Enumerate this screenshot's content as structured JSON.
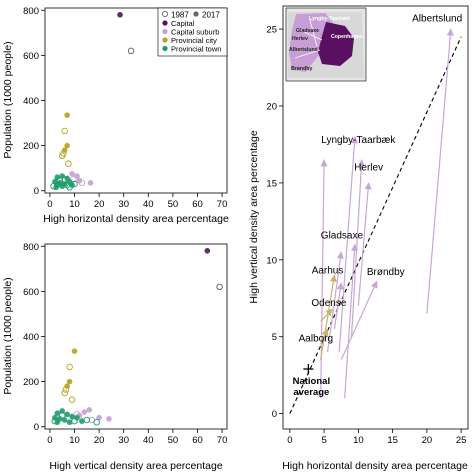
{
  "colors": {
    "capital": "#5a1060",
    "capital_suburb": "#c79ed6",
    "provincial_city": "#b7a21e",
    "provincial_town": "#1f9a6a",
    "year1987": "#666666",
    "year2017": "#666666",
    "arrow_suburb": "#c9a6d6",
    "arrow_city": "#c8b46a",
    "trend": "#000000"
  },
  "chart_data": [
    {
      "type": "scatter",
      "id": "top-left",
      "title": "",
      "xlabel": "High horizontal density area percentage",
      "ylabel": "Population (1000 people)",
      "xlim": [
        -2,
        72
      ],
      "ylim": [
        -10,
        810
      ],
      "xticks": [
        "0",
        "10",
        "20",
        "30",
        "40",
        "50",
        "60",
        "70"
      ],
      "yticks": [
        "0",
        "200",
        "400",
        "600",
        "800"
      ],
      "legend": {
        "placement": "top-right",
        "year_entries": [
          "1987",
          "2017"
        ],
        "category_entries": [
          "Capital",
          "Capital suburb",
          "Provincial city",
          "Provincial town"
        ]
      },
      "points": [
        {
          "x": 28.5,
          "y": 780,
          "cat": "capital",
          "year": "2017"
        },
        {
          "x": 33,
          "y": 620,
          "cat": "capital",
          "year": "1987"
        },
        {
          "x": 7,
          "y": 335,
          "cat": "provincial_city",
          "year": "2017"
        },
        {
          "x": 6,
          "y": 265,
          "cat": "provincial_city",
          "year": "1987"
        },
        {
          "x": 7,
          "y": 200,
          "cat": "provincial_city",
          "year": "2017"
        },
        {
          "x": 6,
          "y": 180,
          "cat": "provincial_city",
          "year": "2017"
        },
        {
          "x": 5.5,
          "y": 165,
          "cat": "provincial_city",
          "year": "1987"
        },
        {
          "x": 5,
          "y": 155,
          "cat": "provincial_city",
          "year": "1987"
        },
        {
          "x": 7.5,
          "y": 120,
          "cat": "provincial_city",
          "year": "1987"
        },
        {
          "x": 9,
          "y": 75,
          "cat": "capital_suburb",
          "year": "2017"
        },
        {
          "x": 11,
          "y": 65,
          "cat": "capital_suburb",
          "year": "2017"
        },
        {
          "x": 12,
          "y": 45,
          "cat": "capital_suburb",
          "year": "2017"
        },
        {
          "x": 16.5,
          "y": 35,
          "cat": "capital_suburb",
          "year": "2017"
        },
        {
          "x": 13,
          "y": 35,
          "cat": "capital_suburb",
          "year": "1987"
        },
        {
          "x": 9.5,
          "y": 50,
          "cat": "capital_suburb",
          "year": "1987"
        },
        {
          "x": 3,
          "y": 60,
          "cat": "provincial_town",
          "year": "2017"
        },
        {
          "x": 5,
          "y": 65,
          "cat": "provincial_town",
          "year": "2017"
        },
        {
          "x": 7,
          "y": 55,
          "cat": "provincial_town",
          "year": "2017"
        },
        {
          "x": 2,
          "y": 40,
          "cat": "provincial_town",
          "year": "2017"
        },
        {
          "x": 4,
          "y": 35,
          "cat": "provincial_town",
          "year": "2017"
        },
        {
          "x": 6,
          "y": 30,
          "cat": "provincial_town",
          "year": "2017"
        },
        {
          "x": 8,
          "y": 40,
          "cat": "provincial_town",
          "year": "2017"
        },
        {
          "x": 3,
          "y": 25,
          "cat": "provincial_town",
          "year": "2017"
        },
        {
          "x": 5,
          "y": 20,
          "cat": "provincial_town",
          "year": "2017"
        },
        {
          "x": 9,
          "y": 25,
          "cat": "provincial_town",
          "year": "2017"
        },
        {
          "x": 2.5,
          "y": 15,
          "cat": "provincial_town",
          "year": "2017"
        },
        {
          "x": 4,
          "y": 45,
          "cat": "provincial_town",
          "year": "1987"
        },
        {
          "x": 6,
          "y": 50,
          "cat": "provincial_town",
          "year": "1987"
        },
        {
          "x": 3,
          "y": 30,
          "cat": "provincial_town",
          "year": "1987"
        },
        {
          "x": 7,
          "y": 25,
          "cat": "provincial_town",
          "year": "1987"
        },
        {
          "x": 10,
          "y": 30,
          "cat": "provincial_town",
          "year": "1987"
        },
        {
          "x": 1.5,
          "y": 20,
          "cat": "provincial_town",
          "year": "1987"
        },
        {
          "x": 8,
          "y": 15,
          "cat": "provincial_town",
          "year": "1987"
        }
      ]
    },
    {
      "type": "scatter",
      "id": "bottom-left",
      "title": "",
      "xlabel": "High vertical density area percentage",
      "ylabel": "Population (1000 people)",
      "xlim": [
        -2,
        72
      ],
      "ylim": [
        -10,
        810
      ],
      "xticks": [
        "0",
        "10",
        "20",
        "30",
        "40",
        "50",
        "60",
        "70"
      ],
      "yticks": [
        "0",
        "200",
        "400",
        "600",
        "800"
      ],
      "points": [
        {
          "x": 64,
          "y": 780,
          "cat": "capital",
          "year": "2017"
        },
        {
          "x": 69,
          "y": 620,
          "cat": "capital",
          "year": "1987"
        },
        {
          "x": 10,
          "y": 335,
          "cat": "provincial_city",
          "year": "2017"
        },
        {
          "x": 8,
          "y": 265,
          "cat": "provincial_city",
          "year": "1987"
        },
        {
          "x": 8,
          "y": 200,
          "cat": "provincial_city",
          "year": "2017"
        },
        {
          "x": 7,
          "y": 180,
          "cat": "provincial_city",
          "year": "2017"
        },
        {
          "x": 6.5,
          "y": 165,
          "cat": "provincial_city",
          "year": "1987"
        },
        {
          "x": 6,
          "y": 150,
          "cat": "provincial_city",
          "year": "1987"
        },
        {
          "x": 9,
          "y": 120,
          "cat": "provincial_city",
          "year": "1987"
        },
        {
          "x": 16,
          "y": 75,
          "cat": "capital_suburb",
          "year": "2017"
        },
        {
          "x": 14,
          "y": 65,
          "cat": "capital_suburb",
          "year": "2017"
        },
        {
          "x": 20,
          "y": 40,
          "cat": "capital_suburb",
          "year": "2017"
        },
        {
          "x": 24,
          "y": 35,
          "cat": "capital_suburb",
          "year": "2017"
        },
        {
          "x": 12,
          "y": 50,
          "cat": "capital_suburb",
          "year": "2017"
        },
        {
          "x": 17,
          "y": 30,
          "cat": "capital_suburb",
          "year": "1987"
        },
        {
          "x": 11,
          "y": 55,
          "cat": "capital_suburb",
          "year": "1987"
        },
        {
          "x": 3,
          "y": 60,
          "cat": "provincial_town",
          "year": "2017"
        },
        {
          "x": 5,
          "y": 70,
          "cat": "provincial_town",
          "year": "2017"
        },
        {
          "x": 7,
          "y": 55,
          "cat": "provincial_town",
          "year": "2017"
        },
        {
          "x": 9,
          "y": 45,
          "cat": "provincial_town",
          "year": "2017"
        },
        {
          "x": 2,
          "y": 40,
          "cat": "provincial_town",
          "year": "2017"
        },
        {
          "x": 4,
          "y": 35,
          "cat": "provincial_town",
          "year": "2017"
        },
        {
          "x": 6,
          "y": 30,
          "cat": "provincial_town",
          "year": "2017"
        },
        {
          "x": 11,
          "y": 40,
          "cat": "provincial_town",
          "year": "2017"
        },
        {
          "x": 13,
          "y": 25,
          "cat": "provincial_town",
          "year": "2017"
        },
        {
          "x": 3,
          "y": 20,
          "cat": "provincial_town",
          "year": "2017"
        },
        {
          "x": 8,
          "y": 20,
          "cat": "provincial_town",
          "year": "2017"
        },
        {
          "x": 5,
          "y": 50,
          "cat": "provincial_town",
          "year": "1987"
        },
        {
          "x": 10,
          "y": 25,
          "cat": "provincial_town",
          "year": "1987"
        },
        {
          "x": 15,
          "y": 30,
          "cat": "provincial_town",
          "year": "1987"
        },
        {
          "x": 19,
          "y": 20,
          "cat": "provincial_town",
          "year": "1987"
        },
        {
          "x": 2,
          "y": 25,
          "cat": "provincial_town",
          "year": "1987"
        }
      ]
    },
    {
      "type": "scatter",
      "id": "right",
      "title": "",
      "xlabel": "High horizontal density area percentage",
      "ylabel": "High vertical density area percentage",
      "xlim": [
        -1,
        26
      ],
      "ylim": [
        -1,
        26.5
      ],
      "xticks": [
        "0",
        "5",
        "10",
        "15",
        "20",
        "25"
      ],
      "yticks": [
        "0",
        "5",
        "10",
        "15",
        "20",
        "25"
      ],
      "trend_line": {
        "x": [
          0,
          25
        ],
        "y": [
          0,
          24.5
        ]
      },
      "arrows": [
        {
          "from": [
            20,
            6.5
          ],
          "to": [
            23.5,
            25
          ],
          "cat": "capital_suburb"
        },
        {
          "from": [
            7.2,
            4
          ],
          "to": [
            9.5,
            18
          ],
          "cat": "capital_suburb"
        },
        {
          "from": [
            4.5,
            1
          ],
          "to": [
            5,
            16.5
          ],
          "cat": "capital_suburb"
        },
        {
          "from": [
            10,
            7
          ],
          "to": [
            11.5,
            15
          ],
          "cat": "capital_suburb"
        },
        {
          "from": [
            9,
            5
          ],
          "to": [
            10.5,
            16.5
          ],
          "cat": "capital_suburb"
        },
        {
          "from": [
            5.5,
            4
          ],
          "to": [
            7.5,
            10.5
          ],
          "cat": "capital_suburb"
        },
        {
          "from": [
            8,
            1
          ],
          "to": [
            9.5,
            11
          ],
          "cat": "capital_suburb"
        },
        {
          "from": [
            7.5,
            3.5
          ],
          "to": [
            12.7,
            8.6
          ],
          "cat": "capital_suburb"
        },
        {
          "from": [
            6.5,
            5.5
          ],
          "to": [
            7.5,
            8.5
          ],
          "cat": "capital_suburb"
        },
        {
          "from": [
            4.5,
            3.5
          ],
          "to": [
            6.5,
            9
          ],
          "cat": "provincial_city"
        },
        {
          "from": [
            4.5,
            6
          ],
          "to": [
            6.2,
            6.8
          ],
          "cat": "provincial_city"
        },
        {
          "from": [
            4.5,
            4.5
          ],
          "to": [
            5.5,
            5.5
          ],
          "cat": "provincial_city"
        }
      ],
      "labels": [
        {
          "text": "Albertslund",
          "x": 21.5,
          "y": 25.5
        },
        {
          "text": "Lyngby-Taarbæk",
          "x": 10,
          "y": 17.6
        },
        {
          "text": "Herlev",
          "x": 11.5,
          "y": 15.8
        },
        {
          "text": "Gladsaxe",
          "x": 7.6,
          "y": 11.4
        },
        {
          "text": "Aarhus",
          "x": 5.5,
          "y": 9.1
        },
        {
          "text": "Brøndby",
          "x": 14,
          "y": 9.0
        },
        {
          "text": "Odense",
          "x": 5.7,
          "y": 7.0
        },
        {
          "text": "Aalborg",
          "x": 3.8,
          "y": 4.7
        }
      ],
      "national_average": {
        "x": 2.7,
        "y": 2.9,
        "label_line1": "National",
        "label_line2": "average"
      },
      "inset_map": {
        "labels": [
          "Lyngby-Taarbæk",
          "Gladsaxe",
          "Herlev",
          "Copenhagen",
          "Albertslund",
          "Brøndby"
        ]
      }
    }
  ]
}
